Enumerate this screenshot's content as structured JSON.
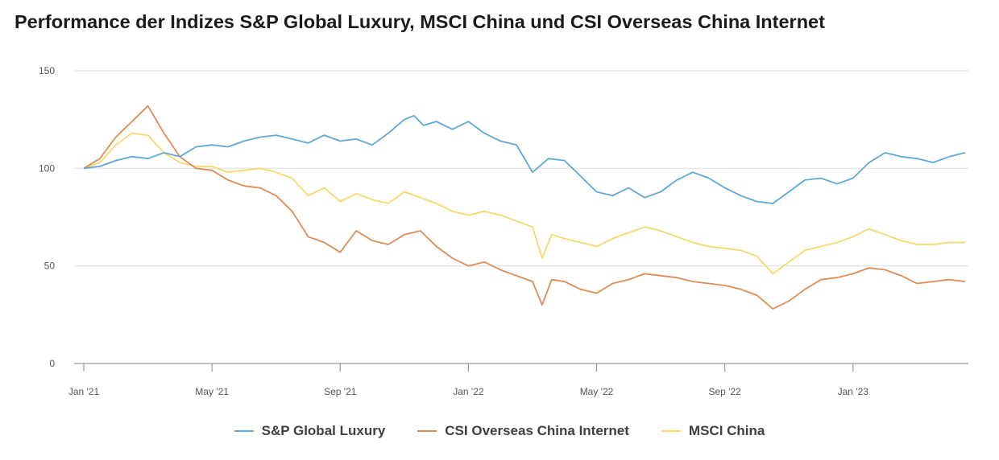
{
  "title": "Performance der Indizes S&P Global Luxury, MSCI China und CSI Overseas China Internet",
  "colors": {
    "luxury": "#5ea8d6",
    "internet": "#e08b52",
    "china": "#f5d96b",
    "grid": "#e6e6e6",
    "axis": "#999999"
  },
  "chart_data": {
    "type": "line",
    "title": "Performance der Indizes S&P Global Luxury, MSCI China und CSI Overseas China Internet",
    "xlabel": "",
    "ylabel": "",
    "ylim": [
      0,
      150
    ],
    "y_ticks": [
      "0",
      "50",
      "100",
      "150"
    ],
    "x_tick_labels": [
      "Jan '21",
      "May '21",
      "Sep '21",
      "Jan '22",
      "May '22",
      "Sep '22",
      "Jan '23"
    ],
    "x_tick_positions": [
      0,
      4,
      8,
      12,
      16,
      20,
      24
    ],
    "x_unit": "months since Jan '21",
    "xlim": [
      0,
      27.6
    ],
    "grid": true,
    "legend_position": "bottom",
    "series": [
      {
        "name": "S&P Global Luxury",
        "color": "#5ea8d6",
        "x": [
          0,
          0.5,
          1,
          1.5,
          2,
          2.5,
          3,
          3.5,
          4,
          4.5,
          5,
          5.5,
          6,
          6.5,
          7,
          7.5,
          8,
          8.5,
          9,
          9.5,
          10,
          10.3,
          10.6,
          11,
          11.5,
          12,
          12.5,
          13,
          13.5,
          14,
          14.5,
          15,
          15.5,
          16,
          16.5,
          17,
          17.5,
          18,
          18.5,
          19,
          19.5,
          20,
          20.5,
          21,
          21.5,
          22,
          22.5,
          23,
          23.5,
          24,
          24.5,
          25,
          25.5,
          26,
          26.5,
          27,
          27.5
        ],
        "values": [
          100,
          101,
          104,
          106,
          105,
          108,
          106,
          111,
          112,
          111,
          114,
          116,
          117,
          115,
          113,
          117,
          114,
          115,
          112,
          118,
          125,
          127,
          122,
          124,
          120,
          124,
          118,
          114,
          112,
          98,
          105,
          104,
          96,
          88,
          86,
          90,
          85,
          88,
          94,
          98,
          95,
          90,
          86,
          83,
          82,
          88,
          94,
          95,
          92,
          95,
          103,
          108,
          106,
          105,
          103,
          106,
          108
        ]
      },
      {
        "name": "CSI Overseas China Internet",
        "color": "#e08b52",
        "x": [
          0,
          0.5,
          1,
          1.5,
          2,
          2.5,
          3,
          3.5,
          4,
          4.5,
          5,
          5.5,
          6,
          6.5,
          7,
          7.5,
          8,
          8.5,
          9,
          9.5,
          10,
          10.5,
          11,
          11.5,
          12,
          12.5,
          13,
          13.5,
          14,
          14.3,
          14.6,
          15,
          15.5,
          16,
          16.5,
          17,
          17.5,
          18,
          18.5,
          19,
          19.5,
          20,
          20.5,
          21,
          21.5,
          22,
          22.5,
          23,
          23.5,
          24,
          24.5,
          25,
          25.5,
          26,
          26.5,
          27,
          27.5
        ],
        "values": [
          100,
          105,
          116,
          124,
          132,
          118,
          106,
          100,
          99,
          94,
          91,
          90,
          86,
          78,
          65,
          62,
          57,
          68,
          63,
          61,
          66,
          68,
          60,
          54,
          50,
          52,
          48,
          45,
          42,
          30,
          43,
          42,
          38,
          36,
          41,
          43,
          46,
          45,
          44,
          42,
          41,
          40,
          38,
          35,
          28,
          32,
          38,
          43,
          44,
          46,
          49,
          48,
          45,
          41,
          42,
          43,
          42
        ]
      },
      {
        "name": "MSCI China",
        "color": "#f5d96b",
        "x": [
          0,
          0.5,
          1,
          1.5,
          2,
          2.5,
          3,
          3.5,
          4,
          4.5,
          5,
          5.5,
          6,
          6.5,
          7,
          7.5,
          8,
          8.5,
          9,
          9.5,
          10,
          10.5,
          11,
          11.5,
          12,
          12.5,
          13,
          13.5,
          14,
          14.3,
          14.6,
          15,
          15.5,
          16,
          16.5,
          17,
          17.5,
          18,
          18.5,
          19,
          19.5,
          20,
          20.5,
          21,
          21.5,
          22,
          22.5,
          23,
          23.5,
          24,
          24.5,
          25,
          25.5,
          26,
          26.5,
          27,
          27.5
        ],
        "values": [
          100,
          103,
          112,
          118,
          117,
          108,
          103,
          101,
          101,
          98,
          99,
          100,
          98,
          95,
          86,
          90,
          83,
          87,
          84,
          82,
          88,
          85,
          82,
          78,
          76,
          78,
          76,
          73,
          70,
          54,
          66,
          64,
          62,
          60,
          64,
          67,
          70,
          68,
          65,
          62,
          60,
          59,
          58,
          55,
          46,
          52,
          58,
          60,
          62,
          65,
          69,
          66,
          63,
          61,
          61,
          62,
          62
        ]
      }
    ]
  }
}
